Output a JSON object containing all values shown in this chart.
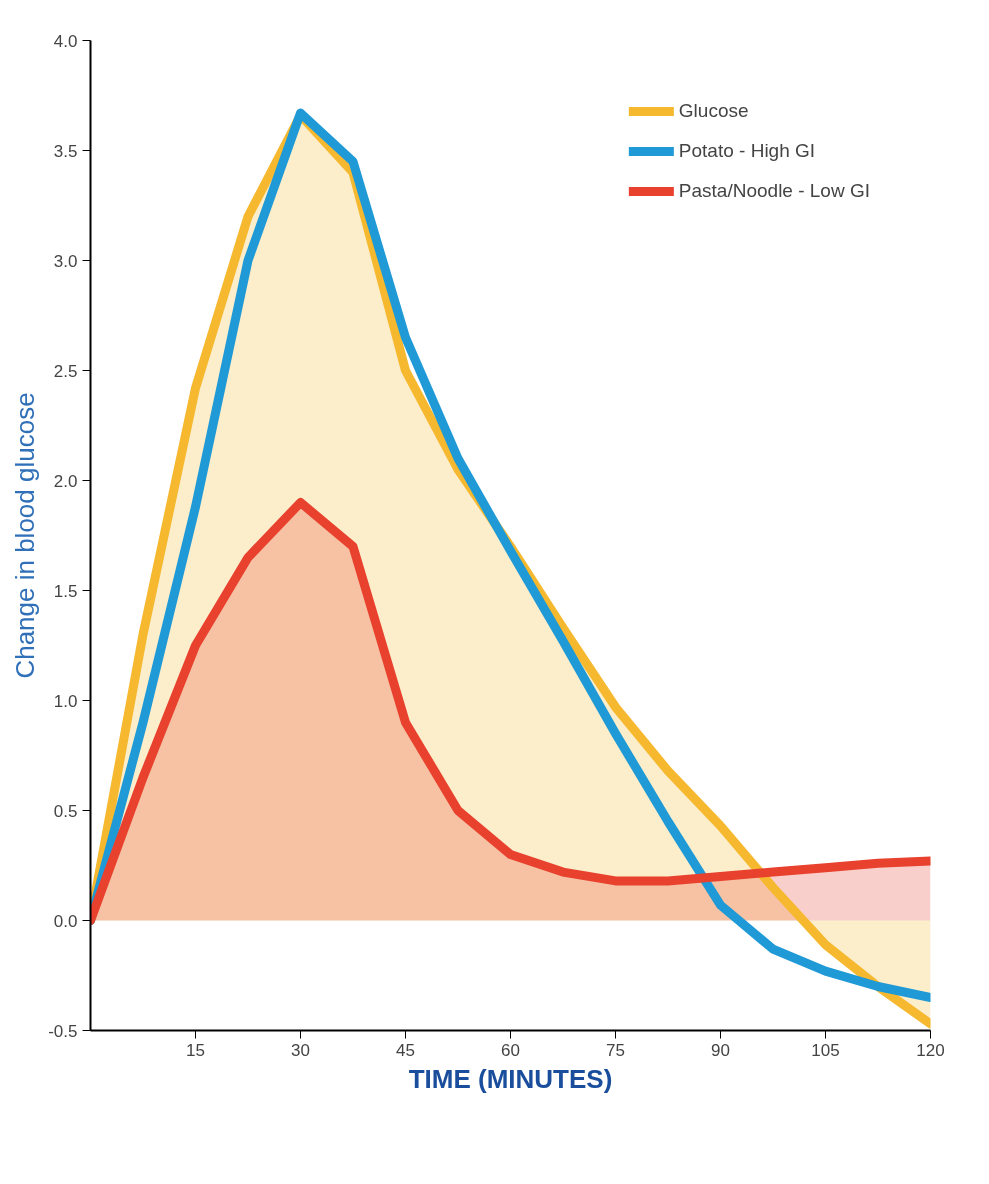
{
  "chart_data": {
    "type": "line",
    "xlabel": "TIME (MINUTES)",
    "ylabel": "Change in blood glucose",
    "x": [
      0,
      7.5,
      15,
      22.5,
      30,
      37.5,
      45,
      52.5,
      60,
      67.5,
      75,
      82.5,
      90,
      97.5,
      105,
      112.5,
      120
    ],
    "series": [
      {
        "name": "Glucose",
        "type": "area",
        "color": "#f5b82e",
        "values": [
          0,
          1.3,
          2.42,
          3.2,
          3.66,
          3.4,
          2.5,
          2.05,
          1.7,
          1.33,
          0.97,
          0.68,
          0.43,
          0.15,
          -0.11,
          -0.3,
          -0.47
        ]
      },
      {
        "name": "Potato - High GI",
        "color": "#1f9ad6",
        "values": [
          0,
          0.9,
          1.88,
          3.0,
          3.67,
          3.45,
          2.65,
          2.1,
          1.68,
          1.27,
          0.85,
          0.45,
          0.07,
          -0.13,
          -0.23,
          -0.3,
          -0.35
        ]
      },
      {
        "name": "Pasta/Noodle - Low GI",
        "type": "area",
        "color": "#e8412e",
        "values": [
          0,
          0.65,
          1.25,
          1.65,
          1.9,
          1.7,
          0.9,
          0.5,
          0.3,
          0.22,
          0.18,
          0.18,
          0.2,
          0.22,
          0.24,
          0.26,
          0.27
        ]
      }
    ],
    "xlim": [
      0,
      120
    ],
    "ylim": [
      -0.5,
      4.0
    ],
    "xticks": [
      15,
      30,
      45,
      60,
      75,
      90,
      105,
      120
    ],
    "yticks": [
      {
        "value": -0.5,
        "label": "-0.5"
      },
      {
        "value": 0,
        "label": "0.0"
      },
      {
        "value": 0.5,
        "label": "0.5"
      },
      {
        "value": 1,
        "label": "1.0"
      },
      {
        "value": 1.5,
        "label": "1.5"
      },
      {
        "value": 2,
        "label": "2.0"
      },
      {
        "value": 2.5,
        "label": "2.5"
      },
      {
        "value": 3,
        "label": "3.0"
      },
      {
        "value": 3.5,
        "label": "3.5"
      },
      {
        "value": 4,
        "label": "4.0"
      }
    ],
    "grid": false,
    "legend": "top right",
    "marker": "none",
    "line_style": "solid"
  }
}
